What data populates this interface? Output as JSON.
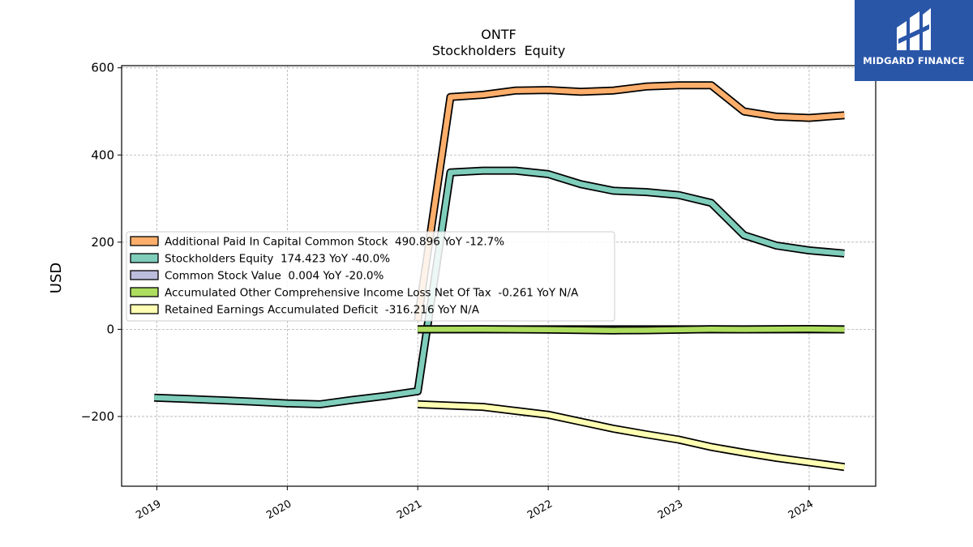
{
  "brand": {
    "name": "MIDGARD FINANCE",
    "bg": "#2a56a8"
  },
  "chart_data": {
    "type": "line",
    "title": "ONTF",
    "subtitle": "Stockholders  Equity",
    "ylabel": "USD",
    "xlabel": "",
    "ylim": [
      -360,
      605
    ],
    "xlim": [
      2018.73,
      2024.51
    ],
    "yticks": [
      -200,
      0,
      200,
      400,
      600
    ],
    "ytick_labels": [
      "−200",
      "0",
      "200",
      "400",
      "600"
    ],
    "xticks": [
      2019,
      2020,
      2021,
      2022,
      2023,
      2024
    ],
    "xtick_labels": [
      "2019",
      "2020",
      "2021",
      "2022",
      "2023",
      "2024"
    ],
    "grid": true,
    "legend_position": "center-left",
    "series": [
      {
        "name": "Additional Paid In Capital Common Stock",
        "legend_label": "Additional Paid In Capital Common Stock  490.896 YoY -12.7%",
        "color": "#fdae6b",
        "x": [
          2021.0,
          2021.25,
          2021.5,
          2021.75,
          2022.0,
          2022.25,
          2022.5,
          2022.75,
          2023.0,
          2023.25,
          2023.5,
          2023.75,
          2024.0,
          2024.27
        ],
        "y": [
          20,
          533,
          538,
          548,
          549,
          545,
          548,
          557,
          560,
          560,
          500,
          488,
          485,
          491
        ]
      },
      {
        "name": "Stockholders Equity",
        "legend_label": "Stockholders Equity  174.423 YoY -40.0%",
        "color": "#7fcdbb",
        "x": [
          2018.98,
          2019.25,
          2019.5,
          2019.75,
          2020.0,
          2020.25,
          2020.5,
          2020.75,
          2021.0,
          2021.25,
          2021.5,
          2021.75,
          2022.0,
          2022.25,
          2022.5,
          2022.75,
          2023.0,
          2023.25,
          2023.5,
          2023.75,
          2024.0,
          2024.27
        ],
        "y": [
          -157,
          -160,
          -163,
          -166,
          -170,
          -172,
          -162,
          -153,
          -142,
          360,
          364,
          364,
          356,
          333,
          318,
          315,
          308,
          290,
          216,
          192,
          181,
          174
        ]
      },
      {
        "name": "Common Stock Value",
        "legend_label": "Common Stock Value  0.004 YoY -20.0%",
        "color": "#bcbddc",
        "x": [
          2021.0,
          2021.5,
          2022.0,
          2022.5,
          2023.0,
          2023.5,
          2024.0,
          2024.27
        ],
        "y": [
          0.005,
          0.005,
          0.005,
          0.005,
          0.005,
          0.005,
          0.004,
          0.004
        ]
      },
      {
        "name": "Accumulated Other Comprehensive Income Loss Net Of Tax",
        "legend_label": "Accumulated Other Comprehensive Income Loss Net Of Tax  -0.261 YoY N/A",
        "color": "#addd5f",
        "x": [
          2021.0,
          2021.5,
          2022.0,
          2022.25,
          2022.5,
          2022.75,
          2023.0,
          2023.25,
          2023.5,
          2023.75,
          2024.0,
          2024.27
        ],
        "y": [
          0,
          0.3,
          -0.5,
          -1.5,
          -2.5,
          -2.0,
          -1.0,
          0.2,
          -0.3,
          0.1,
          0.8,
          -0.26
        ]
      },
      {
        "name": "Retained Earnings Accumulated Deficit",
        "legend_label": "Retained Earnings Accumulated Deficit  -316.216 YoY N/A",
        "color": "#ffffb3",
        "x": [
          2021.0,
          2021.25,
          2021.5,
          2021.75,
          2022.0,
          2022.25,
          2022.5,
          2022.75,
          2023.0,
          2023.25,
          2023.5,
          2023.75,
          2024.0,
          2024.27
        ],
        "y": [
          -172,
          -175,
          -178,
          -187,
          -196,
          -212,
          -228,
          -241,
          -253,
          -270,
          -283,
          -295,
          -305,
          -316
        ]
      }
    ]
  }
}
